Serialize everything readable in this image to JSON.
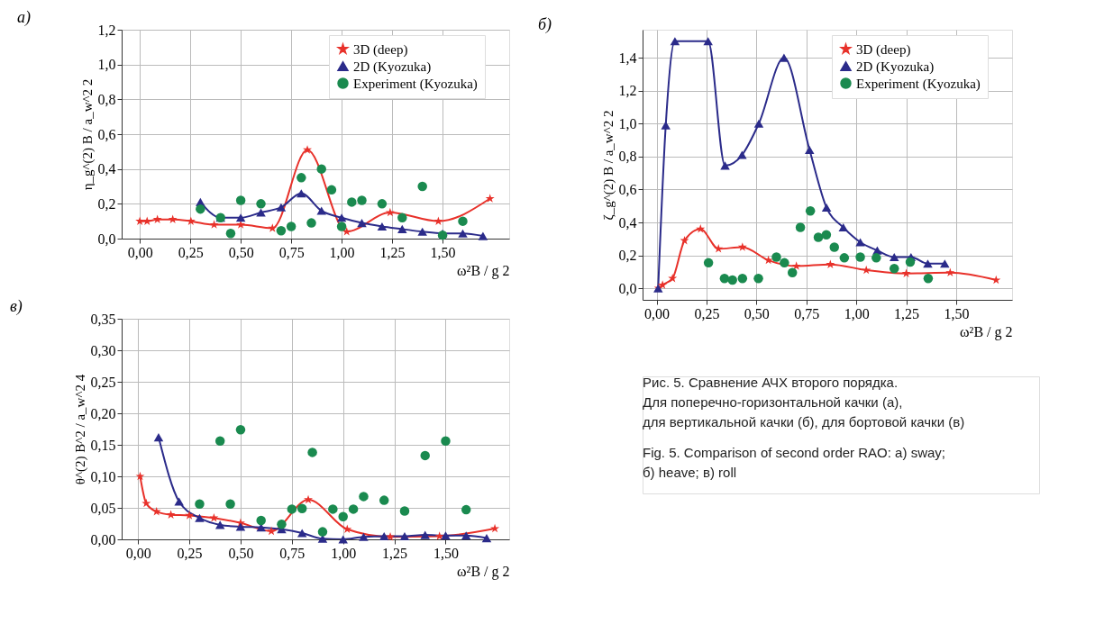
{
  "chart_data": [
    {
      "type": "line",
      "title": "а)",
      "xlabel": "ω²B / g 2",
      "ylabel": "η_g^(2) B / a_w^2 2",
      "grid": true,
      "legend": "top right",
      "xlim": [
        -0.09,
        1.83
      ],
      "ylim": [
        0,
        1.2
      ],
      "xticks": [
        {
          "value": 0,
          "label": "0,00"
        },
        {
          "value": 0.25,
          "label": "0,25"
        },
        {
          "value": 0.5,
          "label": "0,50"
        },
        {
          "value": 0.75,
          "label": "0,75"
        },
        {
          "value": 1.0,
          "label": "1,00"
        },
        {
          "value": 1.25,
          "label": "1,25"
        },
        {
          "value": 1.5,
          "label": "1,50"
        }
      ],
      "yticks": [
        {
          "value": 0,
          "label": "0,0"
        },
        {
          "value": 0.2,
          "label": "0,2"
        },
        {
          "value": 0.4,
          "label": "0,4"
        },
        {
          "value": 0.6,
          "label": "0,6"
        },
        {
          "value": 0.8,
          "label": "0,8"
        },
        {
          "value": 1.0,
          "label": "1,0"
        },
        {
          "value": 1.2,
          "label": "1,2"
        }
      ],
      "series": [
        {
          "name": "3D (deep)",
          "type": "line",
          "marker": "star",
          "color": "#e8312a",
          "x": [
            0.0,
            0.036,
            0.087,
            0.163,
            0.253,
            0.368,
            0.5,
            0.657,
            0.83,
            1.025,
            1.24,
            1.479,
            1.735
          ],
          "values": [
            0.1,
            0.1,
            0.11,
            0.11,
            0.1,
            0.08,
            0.08,
            0.06,
            0.51,
            0.04,
            0.15,
            0.1,
            0.23
          ]
        },
        {
          "name": "2D (Kyozuka)",
          "type": "line",
          "marker": "triangle",
          "color": "#2b2b8a",
          "x": [
            0.3,
            0.4,
            0.5,
            0.6,
            0.7,
            0.8,
            0.9,
            1.0,
            1.1,
            1.2,
            1.3,
            1.4,
            1.5,
            1.6,
            1.7
          ],
          "values": [
            0.21,
            0.12,
            0.12,
            0.15,
            0.18,
            0.26,
            0.16,
            0.12,
            0.09,
            0.07,
            0.055,
            0.04,
            0.03,
            0.03,
            0.015
          ]
        },
        {
          "name": "Experiment (Kyozuka)",
          "type": "scatter",
          "marker": "circle",
          "color": "#1a8a4f",
          "x": [
            0.3,
            0.4,
            0.45,
            0.5,
            0.6,
            0.7,
            0.75,
            0.8,
            0.85,
            0.9,
            0.95,
            1.0,
            1.05,
            1.1,
            1.2,
            1.3,
            1.4,
            1.5,
            1.6
          ],
          "values": [
            0.17,
            0.12,
            0.03,
            0.22,
            0.2,
            0.045,
            0.07,
            0.35,
            0.09,
            0.4,
            0.28,
            0.07,
            0.21,
            0.22,
            0.2,
            0.12,
            0.3,
            0.02,
            0.1
          ]
        }
      ]
    },
    {
      "type": "line",
      "title": "в)",
      "xlabel": "ω²B / g 2",
      "ylabel": "θ^(2) B^2 / a_w^2 4",
      "grid": true,
      "legend": "top right",
      "xlim": [
        -0.08,
        1.81
      ],
      "ylim": [
        0,
        0.35
      ],
      "xticks": [
        {
          "value": 0,
          "label": "0,00"
        },
        {
          "value": 0.25,
          "label": "0,25"
        },
        {
          "value": 0.5,
          "label": "0,50"
        },
        {
          "value": 0.75,
          "label": "0,75"
        },
        {
          "value": 1.0,
          "label": "1,00"
        },
        {
          "value": 1.25,
          "label": "1,25"
        },
        {
          "value": 1.5,
          "label": "1,50"
        }
      ],
      "yticks": [
        {
          "value": 0,
          "label": "0,00"
        },
        {
          "value": 0.05,
          "label": "0,05"
        },
        {
          "value": 0.1,
          "label": "0,10"
        },
        {
          "value": 0.15,
          "label": "0,15"
        },
        {
          "value": 0.2,
          "label": "0,20"
        },
        {
          "value": 0.25,
          "label": "0,25"
        },
        {
          "value": 0.3,
          "label": "0,30"
        },
        {
          "value": 0.35,
          "label": "0,35"
        }
      ],
      "series": [
        {
          "name": "3D (deep)",
          "type": "line",
          "marker": "star",
          "color": "#e8312a",
          "x": [
            0.01,
            0.04,
            0.09,
            0.16,
            0.25,
            0.37,
            0.5,
            0.65,
            0.83,
            1.02,
            1.23,
            1.47,
            1.74
          ],
          "values": [
            0.1,
            0.057,
            0.044,
            0.039,
            0.038,
            0.034,
            0.026,
            0.013,
            0.063,
            0.016,
            0.004,
            0.005,
            0.017
          ]
        },
        {
          "name": "2D (Kyozuka)",
          "type": "line",
          "marker": "triangle",
          "color": "#2b2b8a",
          "x": [
            0.1,
            0.2,
            0.3,
            0.4,
            0.5,
            0.6,
            0.7,
            0.8,
            0.9,
            1.0,
            1.1,
            1.2,
            1.3,
            1.4,
            1.5,
            1.6,
            1.7
          ],
          "values": [
            0.162,
            0.06,
            0.034,
            0.023,
            0.02,
            0.019,
            0.016,
            0.01,
            0.001,
            0.0,
            0.004,
            0.005,
            0.005,
            0.007,
            0.006,
            0.006,
            0.002
          ]
        },
        {
          "name": "Experiment (Kyozuka)",
          "type": "scatter",
          "marker": "circle",
          "color": "#1a8a4f",
          "x": [
            0.3,
            0.4,
            0.45,
            0.5,
            0.6,
            0.7,
            0.75,
            0.8,
            0.85,
            0.9,
            0.95,
            1.0,
            1.05,
            1.1,
            1.2,
            1.3,
            1.4,
            1.5,
            1.6
          ],
          "values": [
            0.056,
            0.156,
            0.056,
            0.174,
            0.03,
            0.024,
            0.048,
            0.049,
            0.138,
            0.012,
            0.048,
            0.036,
            0.048,
            0.068,
            0.062,
            0.045,
            0.133,
            0.156,
            0.047
          ]
        }
      ]
    },
    {
      "type": "line",
      "title": "б)",
      "xlabel": "ω²B / g 2",
      "ylabel": "ζ_g^(2) B / a_w^2 2",
      "grid": true,
      "legend": "top right",
      "xlim": [
        -0.07,
        1.78
      ],
      "ylim": [
        -0.07,
        1.57
      ],
      "xticks": [
        {
          "value": 0,
          "label": "0,00"
        },
        {
          "value": 0.25,
          "label": "0,25"
        },
        {
          "value": 0.5,
          "label": "0,50"
        },
        {
          "value": 0.75,
          "label": "0,75"
        },
        {
          "value": 1.0,
          "label": "1,00"
        },
        {
          "value": 1.25,
          "label": "1,25"
        },
        {
          "value": 1.5,
          "label": "1,50"
        }
      ],
      "yticks": [
        {
          "value": 0,
          "label": "0,0"
        },
        {
          "value": 0.2,
          "label": "0,2"
        },
        {
          "value": 0.4,
          "label": "0,4"
        },
        {
          "value": 0.6,
          "label": "0,6"
        },
        {
          "value": 0.8,
          "label": "0,8"
        },
        {
          "value": 1.0,
          "label": "1,0"
        },
        {
          "value": 1.2,
          "label": "1,2"
        },
        {
          "value": 1.4,
          "label": "1,4"
        }
      ],
      "series": [
        {
          "name": "3D (deep)",
          "type": "line",
          "marker": "star",
          "color": "#e8312a",
          "x": [
            0.01,
            0.03,
            0.08,
            0.14,
            0.22,
            0.31,
            0.43,
            0.56,
            0.7,
            0.87,
            1.05,
            1.25,
            1.47,
            1.7
          ],
          "values": [
            0.0,
            0.02,
            0.06,
            0.29,
            0.36,
            0.24,
            0.25,
            0.17,
            0.135,
            0.145,
            0.11,
            0.09,
            0.095,
            0.05
          ]
        },
        {
          "name": "2D (Kyozuka)",
          "type": "line",
          "marker": "triangle",
          "color": "#2b2b8a",
          "x": [
            0.008,
            0.046,
            0.092,
            0.258,
            0.343,
            0.428,
            0.512,
            0.638,
            0.766,
            0.851,
            0.935,
            1.02,
            1.105,
            1.19,
            1.274,
            1.358,
            1.443
          ],
          "values": [
            0.0,
            0.99,
            1.5,
            1.5,
            0.745,
            0.81,
            1.0,
            1.4,
            0.84,
            0.49,
            0.37,
            0.28,
            0.23,
            0.19,
            0.19,
            0.15,
            0.15
          ]
        },
        {
          "name": "Experiment (Kyozuka)",
          "type": "scatter",
          "marker": "circle",
          "color": "#1a8a4f",
          "x": [
            0.26,
            0.34,
            0.38,
            0.43,
            0.51,
            0.6,
            0.64,
            0.68,
            0.72,
            0.77,
            0.81,
            0.85,
            0.89,
            0.94,
            1.02,
            1.1,
            1.19,
            1.27,
            1.36
          ],
          "values": [
            0.155,
            0.06,
            0.05,
            0.06,
            0.06,
            0.19,
            0.155,
            0.095,
            0.37,
            0.47,
            0.31,
            0.325,
            0.25,
            0.185,
            0.19,
            0.185,
            0.12,
            0.16,
            0.06
          ]
        }
      ],
      "annotations": [
        "Рис. 5. Сравнение АЧХ второго порядка.",
        "Для поперечно-горизонтальной качки (а),",
        "для вертикальной качки (б), для бортовой качки (в)",
        "Fig. 5. Comparison of second order RAO: а) sway;",
        "б) heave; в) roll"
      ]
    }
  ]
}
